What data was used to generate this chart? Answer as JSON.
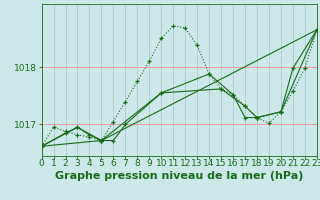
{
  "bg_color": "#cce8e8",
  "grid_color_h": "#e8a0a0",
  "grid_color_v": "#b0d0d0",
  "line_color": "#1a6b1a",
  "xlim": [
    0,
    23
  ],
  "ylim_bottom": 1016.45,
  "ylim_top": 1019.1,
  "yticks": [
    1017,
    1018
  ],
  "xticks": [
    0,
    1,
    2,
    3,
    4,
    5,
    6,
    7,
    8,
    9,
    10,
    11,
    12,
    13,
    14,
    15,
    16,
    17,
    18,
    19,
    20,
    21,
    22,
    23
  ],
  "line1_x": [
    0,
    1,
    2,
    3,
    4,
    5,
    6,
    7,
    8,
    9,
    10,
    11,
    12,
    13,
    14,
    15,
    16,
    17,
    18,
    19,
    20,
    21,
    22,
    23
  ],
  "line1_y": [
    1016.62,
    1016.95,
    1016.88,
    1016.82,
    1016.78,
    1016.72,
    1017.05,
    1017.4,
    1017.75,
    1018.1,
    1018.5,
    1018.72,
    1018.68,
    1018.38,
    1017.88,
    1017.62,
    1017.52,
    1017.32,
    1017.12,
    1017.02,
    1017.22,
    1017.58,
    1017.98,
    1018.65
  ],
  "line2_x": [
    0,
    3,
    5,
    23
  ],
  "line2_y": [
    1016.62,
    1016.95,
    1016.72,
    1018.65
  ],
  "line3_x": [
    0,
    5,
    6,
    7,
    10,
    14,
    16,
    17,
    18,
    20,
    23
  ],
  "line3_y": [
    1016.62,
    1016.72,
    1016.72,
    1017.0,
    1017.55,
    1017.88,
    1017.52,
    1017.12,
    1017.12,
    1017.22,
    1018.65
  ],
  "line4_x": [
    0,
    2,
    3,
    4,
    5,
    10,
    15,
    17,
    18,
    20,
    21,
    23
  ],
  "line4_y": [
    1016.62,
    1016.85,
    1016.95,
    1016.82,
    1016.72,
    1017.55,
    1017.62,
    1017.32,
    1017.12,
    1017.22,
    1017.98,
    1018.65
  ],
  "xlabel": "Graphe pression niveau de la mer (hPa)",
  "font_color": "#1a6b1a",
  "tick_fontsize": 6.5,
  "xlabel_fontsize": 8
}
